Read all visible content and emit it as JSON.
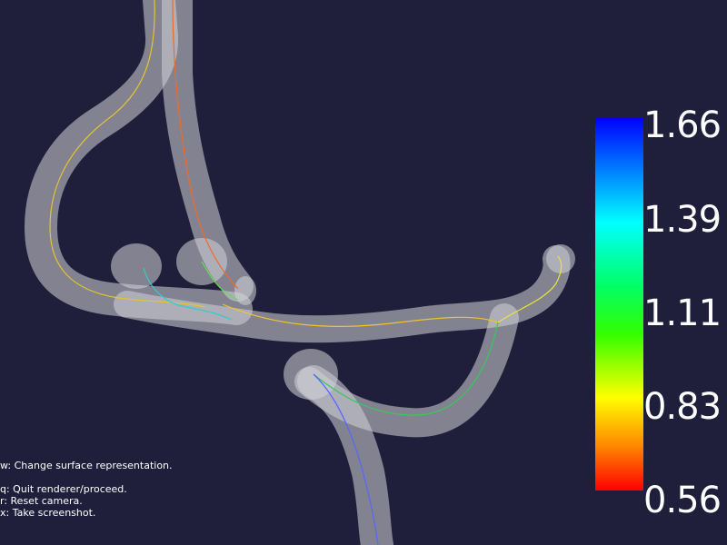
{
  "viewer": {
    "background_color": "#1f1f3b",
    "surface_color": "#d9d9d9",
    "surface_representation": "translucent vessel surface with centerlines"
  },
  "colorbar": {
    "ticks": [
      "1.66",
      "1.39",
      "1.11",
      "0.83",
      "0.56"
    ],
    "max": 1.66,
    "min": 0.56,
    "color_map": [
      "#0000ff",
      "#00ffff",
      "#00ff00",
      "#ffff00",
      "#ff0000"
    ]
  },
  "help": {
    "line1": "w: Change surface representation.",
    "line2": "q: Quit renderer/proceed.",
    "line3": "r: Reset camera.",
    "line4": "x: Take screenshot."
  }
}
